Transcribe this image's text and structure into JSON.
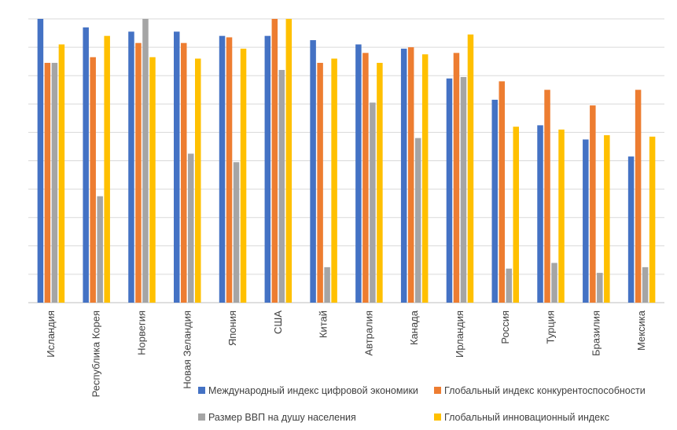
{
  "chart_data": {
    "type": "bar",
    "title": "",
    "xlabel": "",
    "ylabel": "",
    "ylim": [
      0,
      100
    ],
    "grid": true,
    "legend_position": "bottom",
    "categories": [
      "Исландия",
      "Республика Корея",
      "Норвегия",
      "Новая Зеландия",
      "Япония",
      "США",
      "Китай",
      "Автралия",
      "Канада",
      "Ирландия",
      "Россия",
      "Турция",
      "Бразилия",
      "Мексика"
    ],
    "series": [
      {
        "name": "Международный индекс цифровой экономики",
        "color": "#4472C4",
        "values": [
          100,
          97,
          95.5,
          95.5,
          94,
          94,
          92.5,
          91,
          89.5,
          79,
          71.5,
          62.5,
          57.5,
          51.5
        ]
      },
      {
        "name": "Глобальный индекс конкурентоспособности",
        "color": "#ED7D31",
        "values": [
          84.5,
          86.5,
          91.5,
          91.5,
          93.5,
          100,
          84.5,
          88,
          90,
          88,
          78,
          75,
          69.5,
          75
        ]
      },
      {
        "name": "Размер ВВП на душу населения",
        "color": "#A5A5A5",
        "values": [
          84.5,
          37.5,
          100,
          52.5,
          49.5,
          82,
          12.5,
          70.5,
          58,
          79.5,
          12,
          14,
          10.5,
          12.5
        ]
      },
      {
        "name": "Глобальный инновационный индекс",
        "color": "#FFC000",
        "values": [
          91,
          94,
          86.5,
          86,
          89.5,
          100,
          86,
          84.5,
          87.5,
          94.5,
          62,
          61,
          59,
          58.5
        ]
      }
    ]
  }
}
